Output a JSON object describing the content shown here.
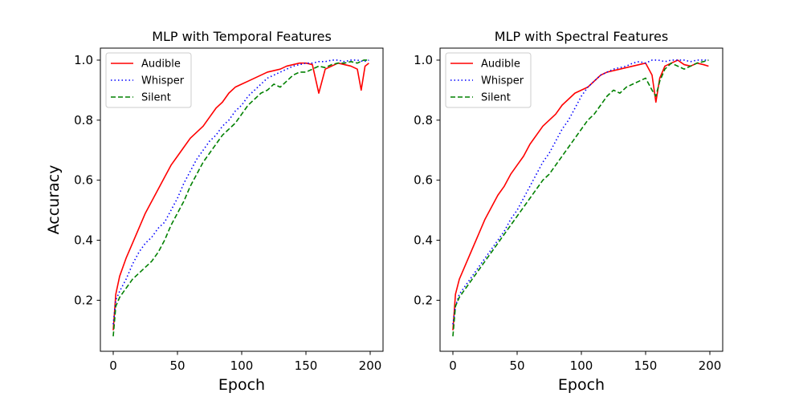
{
  "chart_data": [
    {
      "type": "line",
      "title": "MLP with Temporal Features",
      "xlabel": "Epoch",
      "ylabel": "Accuracy",
      "xlim": [
        -10,
        210
      ],
      "ylim": [
        0.03,
        1.04
      ],
      "xticks": [
        0,
        50,
        100,
        150,
        200
      ],
      "yticks": [
        0.2,
        0.4,
        0.6,
        0.8,
        1.0
      ],
      "xtick_labels": [
        "0",
        "50",
        "100",
        "150",
        "200"
      ],
      "ytick_labels": [
        "0.2",
        "0.4",
        "0.6",
        "0.8",
        "1.0"
      ],
      "grid": false,
      "legend_position": "upper-left",
      "series": [
        {
          "name": "Audible",
          "color": "#ff0000",
          "style": "solid",
          "x": [
            0,
            2,
            5,
            10,
            15,
            20,
            25,
            30,
            35,
            40,
            45,
            50,
            55,
            60,
            65,
            70,
            75,
            80,
            85,
            90,
            95,
            100,
            105,
            110,
            115,
            120,
            125,
            130,
            135,
            140,
            145,
            150,
            155,
            160,
            165,
            170,
            175,
            180,
            185,
            190,
            193,
            196,
            199
          ],
          "y": [
            0.1,
            0.22,
            0.28,
            0.34,
            0.39,
            0.44,
            0.49,
            0.53,
            0.57,
            0.61,
            0.65,
            0.68,
            0.71,
            0.74,
            0.76,
            0.78,
            0.81,
            0.84,
            0.86,
            0.89,
            0.91,
            0.92,
            0.93,
            0.94,
            0.95,
            0.96,
            0.965,
            0.97,
            0.98,
            0.985,
            0.99,
            0.99,
            0.985,
            0.89,
            0.97,
            0.98,
            0.99,
            0.985,
            0.98,
            0.97,
            0.9,
            0.98,
            0.99
          ]
        },
        {
          "name": "Whisper",
          "color": "#0000ff",
          "style": "dotted",
          "x": [
            0,
            2,
            5,
            10,
            15,
            20,
            25,
            30,
            35,
            40,
            45,
            50,
            55,
            60,
            65,
            70,
            75,
            80,
            85,
            90,
            95,
            100,
            105,
            110,
            115,
            120,
            125,
            130,
            135,
            140,
            145,
            150,
            155,
            160,
            165,
            170,
            175,
            180,
            185,
            190,
            195,
            199
          ],
          "y": [
            0.12,
            0.2,
            0.23,
            0.27,
            0.32,
            0.36,
            0.39,
            0.41,
            0.44,
            0.46,
            0.5,
            0.54,
            0.59,
            0.63,
            0.67,
            0.7,
            0.73,
            0.75,
            0.78,
            0.8,
            0.83,
            0.85,
            0.88,
            0.9,
            0.92,
            0.94,
            0.95,
            0.96,
            0.97,
            0.98,
            0.985,
            0.99,
            0.99,
            0.995,
            0.995,
            1.0,
            1.0,
            0.995,
            1.0,
            1.0,
            0.995,
            1.0
          ]
        },
        {
          "name": "Silent",
          "color": "#008000",
          "style": "dashed",
          "x": [
            0,
            2,
            5,
            10,
            15,
            20,
            25,
            30,
            35,
            40,
            45,
            50,
            55,
            60,
            65,
            70,
            75,
            80,
            85,
            90,
            95,
            100,
            105,
            110,
            115,
            120,
            125,
            130,
            135,
            140,
            145,
            150,
            155,
            160,
            165,
            170,
            175,
            180,
            185,
            190,
            195,
            199
          ],
          "y": [
            0.08,
            0.18,
            0.21,
            0.24,
            0.27,
            0.29,
            0.31,
            0.33,
            0.36,
            0.4,
            0.45,
            0.49,
            0.53,
            0.58,
            0.62,
            0.66,
            0.69,
            0.72,
            0.75,
            0.77,
            0.79,
            0.82,
            0.85,
            0.87,
            0.89,
            0.9,
            0.92,
            0.91,
            0.93,
            0.95,
            0.96,
            0.96,
            0.97,
            0.98,
            0.975,
            0.985,
            0.99,
            0.99,
            0.995,
            0.99,
            1.0,
            1.0
          ]
        }
      ]
    },
    {
      "type": "line",
      "title": "MLP with Spectral Features",
      "xlabel": "Epoch",
      "ylabel": "",
      "xlim": [
        -10,
        210
      ],
      "ylim": [
        0.03,
        1.04
      ],
      "xticks": [
        0,
        50,
        100,
        150,
        200
      ],
      "yticks": [
        0.2,
        0.4,
        0.6,
        0.8,
        1.0
      ],
      "xtick_labels": [
        "0",
        "50",
        "100",
        "150",
        "200"
      ],
      "ytick_labels": [
        "0.2",
        "0.4",
        "0.6",
        "0.8",
        "1.0"
      ],
      "grid": false,
      "legend_position": "upper-left",
      "series": [
        {
          "name": "Audible",
          "color": "#ff0000",
          "style": "solid",
          "x": [
            0,
            2,
            5,
            10,
            15,
            20,
            25,
            30,
            35,
            40,
            45,
            50,
            55,
            60,
            65,
            70,
            75,
            80,
            85,
            90,
            95,
            100,
            105,
            110,
            115,
            120,
            125,
            130,
            135,
            140,
            145,
            150,
            155,
            158,
            161,
            165,
            170,
            175,
            180,
            185,
            190,
            195,
            199
          ],
          "y": [
            0.1,
            0.22,
            0.27,
            0.32,
            0.37,
            0.42,
            0.47,
            0.51,
            0.55,
            0.58,
            0.62,
            0.65,
            0.68,
            0.72,
            0.75,
            0.78,
            0.8,
            0.82,
            0.85,
            0.87,
            0.89,
            0.9,
            0.91,
            0.93,
            0.95,
            0.96,
            0.965,
            0.97,
            0.975,
            0.98,
            0.985,
            0.99,
            0.95,
            0.86,
            0.94,
            0.98,
            0.99,
            1.0,
            0.985,
            0.98,
            0.99,
            0.985,
            0.98
          ]
        },
        {
          "name": "Whisper",
          "color": "#0000ff",
          "style": "dotted",
          "x": [
            0,
            2,
            5,
            10,
            15,
            20,
            25,
            30,
            35,
            40,
            45,
            50,
            55,
            60,
            65,
            70,
            75,
            80,
            85,
            90,
            95,
            100,
            105,
            110,
            115,
            120,
            125,
            130,
            135,
            140,
            145,
            150,
            155,
            160,
            165,
            170,
            175,
            180,
            185,
            190,
            195,
            199
          ],
          "y": [
            0.12,
            0.18,
            0.22,
            0.25,
            0.28,
            0.31,
            0.34,
            0.37,
            0.4,
            0.43,
            0.47,
            0.5,
            0.54,
            0.58,
            0.62,
            0.66,
            0.69,
            0.73,
            0.77,
            0.8,
            0.84,
            0.88,
            0.91,
            0.93,
            0.95,
            0.96,
            0.97,
            0.975,
            0.98,
            0.99,
            0.995,
            0.99,
            1.0,
            1.0,
            0.995,
            1.0,
            1.0,
            1.0,
            0.995,
            1.0,
            1.0,
            1.0
          ]
        },
        {
          "name": "Silent",
          "color": "#008000",
          "style": "dashed",
          "x": [
            0,
            2,
            5,
            10,
            15,
            20,
            25,
            30,
            35,
            40,
            45,
            50,
            55,
            60,
            65,
            70,
            75,
            80,
            85,
            90,
            95,
            100,
            105,
            110,
            115,
            120,
            125,
            130,
            135,
            140,
            145,
            150,
            155,
            158,
            161,
            165,
            170,
            175,
            180,
            185,
            190,
            195,
            199
          ],
          "y": [
            0.08,
            0.18,
            0.21,
            0.24,
            0.27,
            0.3,
            0.33,
            0.36,
            0.39,
            0.42,
            0.45,
            0.48,
            0.51,
            0.54,
            0.57,
            0.6,
            0.62,
            0.65,
            0.68,
            0.71,
            0.74,
            0.77,
            0.8,
            0.82,
            0.85,
            0.88,
            0.9,
            0.89,
            0.91,
            0.92,
            0.93,
            0.94,
            0.9,
            0.88,
            0.93,
            0.97,
            0.99,
            0.98,
            0.97,
            0.98,
            0.99,
            0.995,
            1.0
          ]
        }
      ]
    }
  ]
}
